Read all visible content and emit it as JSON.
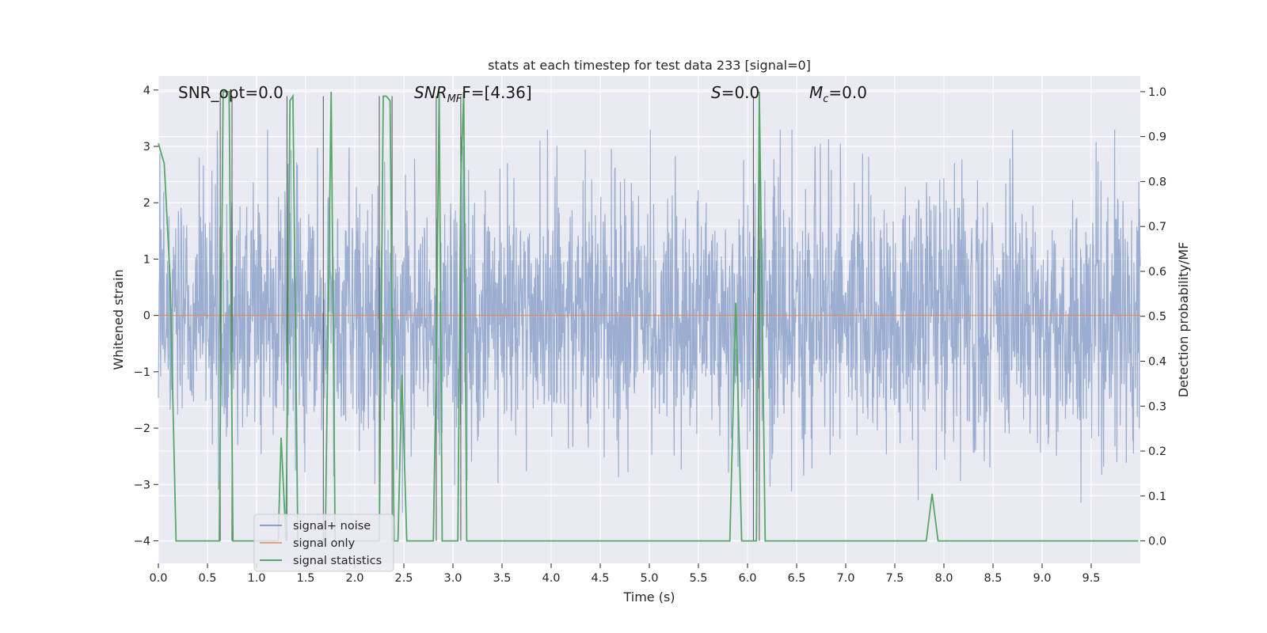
{
  "chart_data": {
    "type": "line",
    "title": "stats at each timestep for test data 233 [signal=0]",
    "xlabel": "Time (s)",
    "ylabel_left": "Whitened strain",
    "ylabel_right": "Detection probability/MF",
    "xlim": [
      0.0,
      10.0
    ],
    "ylim_left": [
      -4.4,
      4.25
    ],
    "ylim_right": [
      -0.05,
      1.035
    ],
    "x_ticks": [
      "0.0",
      "0.5",
      "1.0",
      "1.5",
      "2.0",
      "2.5",
      "3.0",
      "3.5",
      "4.0",
      "4.5",
      "5.0",
      "5.5",
      "6.0",
      "6.5",
      "7.0",
      "7.5",
      "8.0",
      "8.5",
      "9.0",
      "9.5"
    ],
    "y_left_ticks": [
      4,
      3,
      2,
      1,
      0,
      -1,
      -2,
      -3,
      -4
    ],
    "y_left_tick_labels": [
      "4",
      "3",
      "2",
      "1",
      "0",
      "−1",
      "−2",
      "−3",
      "−4"
    ],
    "y_right_ticks": [
      "1.0",
      "0.9",
      "0.8",
      "0.7",
      "0.6",
      "0.5",
      "0.4",
      "0.3",
      "0.2",
      "0.1",
      "0.0"
    ],
    "grid": true,
    "legend_position": "lower-left",
    "annotations": {
      "snr_opt": "SNR_opt=0.0",
      "snr_mf_main": "SNR",
      "snr_mf_sub": "MF",
      "snr_mf_tail": "F=[4.36]",
      "s_var": "S",
      "s_tail": "=0.0",
      "mc_var": "M",
      "mc_sub": "c",
      "mc_tail": "=0.0"
    },
    "series": [
      {
        "name": "signal+ noise",
        "color": "#4c72b0",
        "kind": "noise",
        "amplitude_core": 1.55,
        "amplitude_peak": 3.3
      },
      {
        "name": "signal only",
        "color": "#dd8452",
        "kind": "constant",
        "value": 0.0
      },
      {
        "name": "signal statistics",
        "color": "#55a868",
        "axis": "right",
        "x": [
          0.0,
          0.06,
          0.12,
          0.18,
          0.62,
          0.66,
          0.69,
          0.72,
          0.76,
          0.8,
          1.22,
          1.25,
          1.3,
          1.34,
          1.37,
          1.42,
          1.47,
          1.5,
          1.55,
          1.7,
          1.73,
          1.76,
          1.8,
          1.85,
          2.25,
          2.29,
          2.32,
          2.36,
          2.4,
          2.44,
          2.48,
          2.53,
          2.8,
          2.83,
          2.86,
          2.89,
          2.93,
          3.05,
          3.08,
          3.11,
          3.14,
          3.18,
          5.82,
          5.88,
          5.94,
          6.06,
          6.09,
          6.12,
          6.18,
          6.24,
          7.82,
          7.88,
          7.94,
          9.98
        ],
        "y": [
          0.885,
          0.84,
          0.58,
          0.0,
          0.0,
          1.0,
          1.0,
          1.0,
          0.0,
          0.0,
          0.0,
          0.23,
          0.0,
          0.98,
          0.99,
          0.0,
          0.0,
          0.0,
          0.0,
          0.0,
          0.5,
          1.0,
          0.0,
          0.0,
          0.0,
          0.99,
          0.99,
          0.98,
          0.0,
          0.0,
          0.37,
          0.0,
          0.0,
          0.4,
          1.0,
          0.0,
          0.0,
          0.0,
          0.8,
          1.0,
          0.0,
          0.0,
          0.0,
          0.53,
          0.0,
          0.0,
          0.0,
          1.0,
          0.0,
          0.0,
          0.0,
          0.105,
          0.0,
          0.0
        ]
      }
    ],
    "vertical_markers": [
      0.63,
      0.75,
      1.31,
      1.68,
      2.25,
      2.38,
      2.83,
      3.08,
      6.06,
      6.12
    ]
  }
}
